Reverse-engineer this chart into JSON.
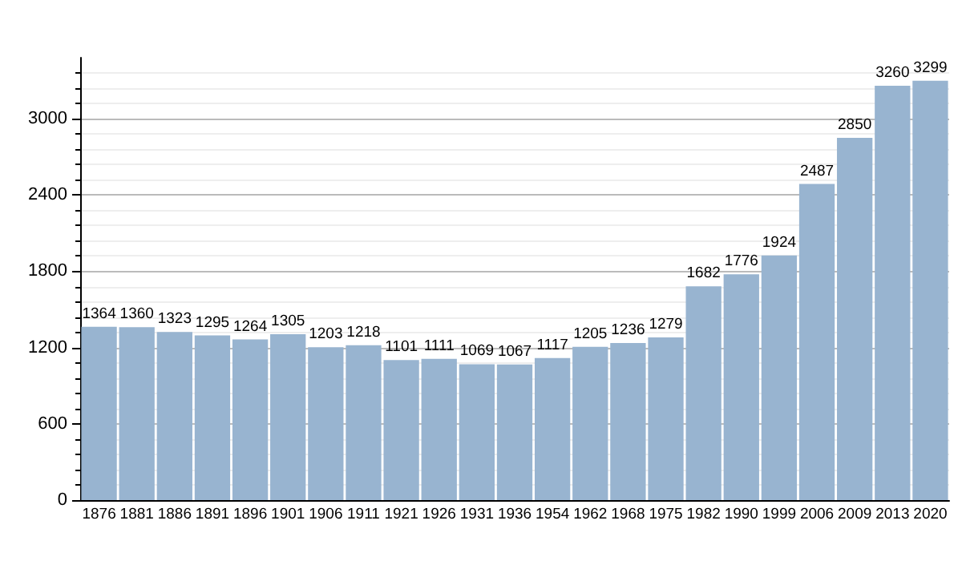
{
  "chart_data": {
    "type": "bar",
    "categories": [
      "1876",
      "1881",
      "1886",
      "1891",
      "1896",
      "1901",
      "1906",
      "1911",
      "1921",
      "1926",
      "1931",
      "1936",
      "1954",
      "1962",
      "1968",
      "1975",
      "1982",
      "1990",
      "1999",
      "2006",
      "2009",
      "2013",
      "2020"
    ],
    "values": [
      1364,
      1360,
      1323,
      1295,
      1264,
      1305,
      1203,
      1218,
      1101,
      1111,
      1069,
      1067,
      1117,
      1205,
      1236,
      1279,
      1682,
      1776,
      1924,
      2487,
      2850,
      3260,
      3299
    ],
    "color": "#98b4d0",
    "ylim": [
      0,
      3480
    ],
    "yticks": [
      0,
      600,
      1200,
      1800,
      2400,
      3000
    ],
    "grid": "y",
    "data_labels": true
  }
}
